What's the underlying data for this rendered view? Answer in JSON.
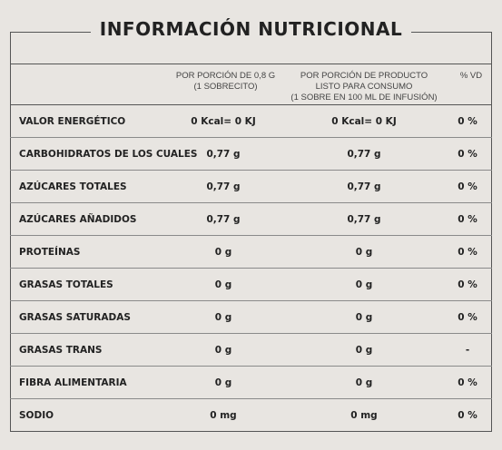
{
  "title": "INFORMACIÓN NUTRICIONAL",
  "headers": {
    "col1": "POR PORCIÓN DE 0,8 G\n(1 SOBRECITO)",
    "col2": "POR PORCIÓN DE PRODUCTO\nLISTO PARA CONSUMO\n(1 SOBRE EN 100 ML DE INFUSIÓN)",
    "col3": "% VD"
  },
  "rows": [
    {
      "label": "VALOR ENERGÉTICO",
      "v1": "0 Kcal= 0 KJ",
      "v2": "0 Kcal= 0 KJ",
      "v3": "0 %"
    },
    {
      "label": "CARBOHIDRATOS DE LOS CUALES",
      "v1": "0,77 g",
      "v2": "0,77 g",
      "v3": "0 %"
    },
    {
      "label": "AZÚCARES TOTALES",
      "v1": "0,77 g",
      "v2": "0,77 g",
      "v3": "0 %"
    },
    {
      "label": "AZÚCARES AÑADIDOS",
      "v1": "0,77 g",
      "v2": "0,77 g",
      "v3": "0 %"
    },
    {
      "label": "PROTEÍNAS",
      "v1": "0 g",
      "v2": "0 g",
      "v3": "0 %"
    },
    {
      "label": "GRASAS TOTALES",
      "v1": "0 g",
      "v2": "0 g",
      "v3": "0 %"
    },
    {
      "label": "GRASAS SATURADAS",
      "v1": "0 g",
      "v2": "0 g",
      "v3": "0 %"
    },
    {
      "label": "GRASAS TRANS",
      "v1": "0 g",
      "v2": "0 g",
      "v3": "-"
    },
    {
      "label": "FIBRA ALIMENTARIA",
      "v1": "0 g",
      "v2": "0 g",
      "v3": "0 %"
    },
    {
      "label": "SODIO",
      "v1": "0 mg",
      "v2": "0 mg",
      "v3": "0 %"
    }
  ]
}
